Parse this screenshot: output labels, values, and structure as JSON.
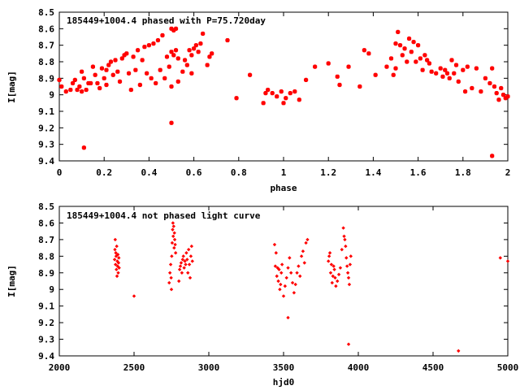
{
  "chart_data": [
    {
      "type": "scatter",
      "title": "185449+1004.4 phased with P=75.720day",
      "xlabel": "phase",
      "ylabel": "I[mag]",
      "xlim": [
        0,
        2
      ],
      "ylim": [
        9.4,
        8.5
      ],
      "y_inverted": true,
      "xticks": [
        "0",
        "0.2",
        "0.4",
        "0.6",
        "0.8",
        "1",
        "1.2",
        "1.4",
        "1.6",
        "1.8",
        "2"
      ],
      "yticks": [
        "8.5",
        "8.6",
        "8.7",
        "8.8",
        "8.9",
        "9",
        "9.1",
        "9.2",
        "9.3",
        "9.4"
      ],
      "marker_color": "#ff0000",
      "grid": false,
      "series": [
        {
          "x": [
            0.0,
            0.01,
            0.03,
            0.05,
            0.06,
            0.07,
            0.08,
            0.09,
            0.1,
            0.1,
            0.11,
            0.12,
            0.13,
            0.14,
            0.15,
            0.16,
            0.17,
            0.18,
            0.19,
            0.2,
            0.21,
            0.21,
            0.22,
            0.23,
            0.24,
            0.25,
            0.26,
            0.27,
            0.28,
            0.29,
            0.3,
            0.31,
            0.32,
            0.33,
            0.34,
            0.35,
            0.36,
            0.37,
            0.38,
            0.39,
            0.4,
            0.41,
            0.42,
            0.43,
            0.44,
            0.45,
            0.46,
            0.47,
            0.48,
            0.49,
            0.5,
            0.5,
            0.5,
            0.51,
            0.51,
            0.52,
            0.52,
            0.53,
            0.53,
            0.55,
            0.56,
            0.57,
            0.58,
            0.59,
            0.59,
            0.6,
            0.61,
            0.62,
            0.63,
            0.64,
            0.66,
            0.67,
            0.68,
            0.75,
            0.79,
            0.85,
            0.91,
            0.92,
            0.93,
            0.95,
            0.97,
            0.99,
            1.0,
            1.01,
            1.03,
            1.05,
            1.07,
            1.1,
            1.14,
            1.2,
            1.24,
            1.25,
            1.29,
            1.34,
            1.36,
            1.38,
            1.41,
            1.46,
            1.48,
            1.49,
            1.5,
            1.5,
            1.51,
            1.52,
            1.53,
            1.54,
            1.55,
            1.56,
            1.57,
            1.58,
            1.59,
            1.6,
            1.61,
            1.62,
            1.63,
            1.64,
            1.65,
            1.66,
            1.68,
            1.7,
            1.71,
            1.72,
            1.73,
            1.74,
            1.75,
            1.76,
            1.77,
            1.78,
            1.8,
            1.81,
            1.82,
            1.84,
            1.86,
            1.88,
            1.9,
            1.92,
            1.93,
            1.94,
            1.95,
            1.96,
            1.97,
            1.98,
            1.99,
            2.0,
            0.11,
            0.5,
            1.93
          ],
          "y": [
            8.91,
            8.95,
            8.98,
            8.97,
            8.93,
            8.91,
            8.97,
            8.95,
            8.86,
            8.98,
            8.9,
            8.97,
            8.93,
            8.93,
            8.83,
            8.88,
            8.93,
            8.96,
            8.84,
            8.9,
            8.94,
            8.85,
            8.82,
            8.8,
            8.88,
            8.79,
            8.86,
            8.92,
            8.78,
            8.76,
            8.75,
            8.87,
            8.97,
            8.77,
            8.85,
            8.73,
            8.94,
            8.79,
            8.71,
            8.87,
            8.7,
            8.9,
            8.69,
            8.93,
            8.67,
            8.85,
            8.64,
            8.9,
            8.77,
            8.83,
            8.6,
            8.74,
            8.95,
            8.61,
            8.76,
            8.73,
            8.6,
            8.78,
            8.92,
            8.86,
            8.79,
            8.82,
            8.73,
            8.87,
            8.76,
            8.72,
            8.7,
            8.74,
            8.69,
            8.63,
            8.82,
            8.77,
            8.75,
            8.67,
            9.02,
            8.88,
            9.05,
            8.99,
            8.97,
            8.99,
            9.01,
            8.98,
            9.05,
            9.02,
            8.99,
            8.98,
            9.03,
            8.91,
            8.83,
            8.81,
            8.89,
            8.94,
            8.83,
            8.95,
            8.73,
            8.75,
            8.88,
            8.83,
            8.78,
            8.88,
            8.69,
            8.84,
            8.62,
            8.7,
            8.76,
            8.72,
            8.8,
            8.66,
            8.74,
            8.68,
            8.8,
            8.7,
            8.78,
            8.85,
            8.76,
            8.79,
            8.81,
            8.86,
            8.87,
            8.84,
            8.89,
            8.85,
            8.87,
            8.9,
            8.79,
            8.87,
            8.82,
            8.92,
            8.85,
            8.98,
            8.83,
            8.96,
            8.84,
            8.98,
            8.9,
            8.93,
            8.84,
            8.95,
            8.99,
            9.03,
            8.96,
            9.0,
            9.02,
            9.01,
            9.32,
            9.17,
            9.37
          ]
        }
      ]
    },
    {
      "type": "scatter",
      "title": "185449+1004.4 not phased light curve",
      "xlabel": "hjd0",
      "ylabel": "I[mag]",
      "xlim": [
        2000,
        5000
      ],
      "ylim": [
        9.4,
        8.5
      ],
      "y_inverted": true,
      "xticks": [
        "2000",
        "2500",
        "3000",
        "3500",
        "4000",
        "4500",
        "5000"
      ],
      "yticks": [
        "8.5",
        "8.6",
        "8.7",
        "8.8",
        "8.9",
        "9",
        "9.1",
        "9.2",
        "9.3",
        "9.4"
      ],
      "marker_color": "#ff0000",
      "grid": false,
      "series": [
        {
          "x": [
            2370,
            2372,
            2374,
            2376,
            2378,
            2380,
            2382,
            2384,
            2386,
            2388,
            2390,
            2392,
            2394,
            2396,
            2398,
            2400,
            2500,
            2735,
            2740,
            2745,
            2748,
            2750,
            2752,
            2755,
            2758,
            2760,
            2762,
            2765,
            2768,
            2770,
            2772,
            2775,
            2778,
            2800,
            2805,
            2810,
            2815,
            2820,
            2825,
            2830,
            2835,
            2840,
            2845,
            2850,
            2855,
            2860,
            2865,
            2870,
            2875,
            2880,
            2885,
            2890,
            3440,
            3445,
            3450,
            3455,
            3460,
            3465,
            3470,
            3475,
            3480,
            3485,
            3490,
            3500,
            3510,
            3520,
            3530,
            3540,
            3550,
            3560,
            3570,
            3580,
            3590,
            3600,
            3610,
            3620,
            3630,
            3640,
            3650,
            3660,
            3800,
            3805,
            3810,
            3815,
            3820,
            3825,
            3830,
            3835,
            3840,
            3845,
            3850,
            3860,
            3870,
            3880,
            3890,
            3900,
            3905,
            3910,
            3915,
            3920,
            3925,
            3930,
            3935,
            3940,
            3945,
            3950,
            3530,
            3935,
            4670,
            4950,
            5000
          ],
          "y": [
            8.82,
            8.76,
            8.7,
            8.85,
            8.78,
            8.8,
            8.88,
            8.74,
            8.92,
            8.83,
            8.86,
            8.79,
            8.9,
            8.84,
            8.81,
            8.87,
            9.04,
            8.96,
            8.9,
            8.85,
            8.93,
            9.0,
            8.8,
            8.72,
            8.64,
            8.6,
            8.68,
            8.62,
            8.75,
            8.66,
            8.7,
            8.73,
            8.78,
            8.95,
            8.88,
            8.86,
            8.84,
            8.9,
            8.82,
            8.8,
            8.87,
            8.83,
            8.85,
            8.78,
            8.82,
            8.9,
            8.76,
            8.85,
            8.93,
            8.8,
            8.74,
            8.83,
            8.73,
            8.86,
            8.78,
            8.92,
            8.87,
            8.95,
            8.88,
            9.0,
            8.97,
            8.9,
            8.85,
            9.04,
            8.98,
            8.93,
            8.87,
            8.81,
            8.9,
            8.96,
            9.02,
            8.97,
            8.9,
            8.86,
            8.92,
            8.8,
            8.77,
            8.84,
            8.72,
            8.7,
            8.83,
            8.8,
            8.78,
            8.9,
            8.85,
            8.96,
            8.92,
            8.86,
            8.88,
            8.93,
            8.98,
            8.95,
            8.91,
            8.87,
            8.76,
            8.63,
            8.68,
            8.7,
            8.74,
            8.81,
            8.86,
            8.9,
            8.93,
            8.97,
            8.85,
            8.8,
            9.17,
            9.33,
            9.37,
            8.81,
            8.83
          ]
        }
      ]
    }
  ]
}
